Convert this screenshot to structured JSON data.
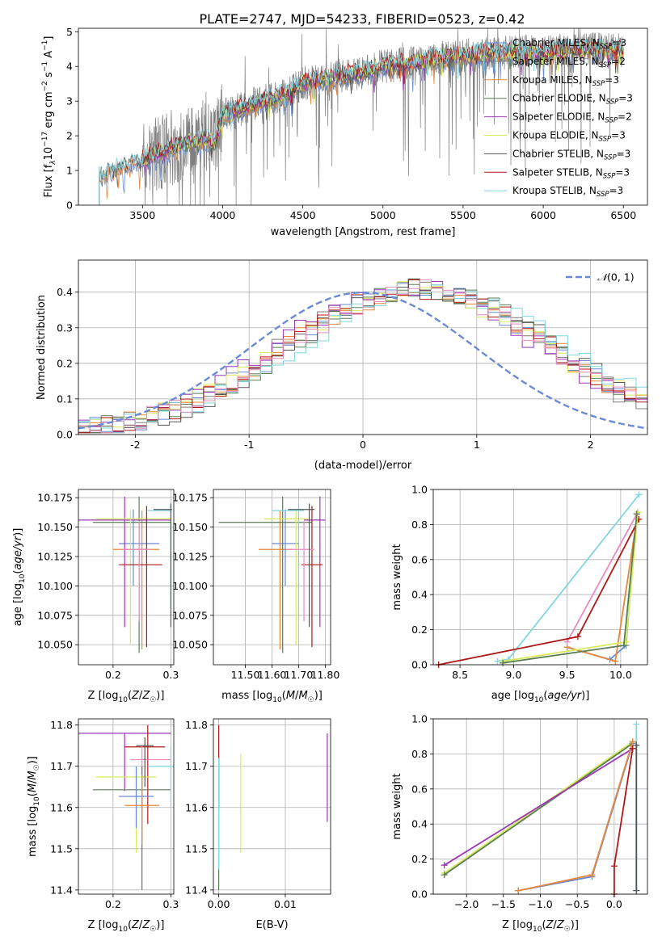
{
  "title": "PLATE=2747, MJD=54233, FIBERID=0523, z=0.42",
  "colors": {
    "chabrier_miles": "#6a8bd4",
    "salpeter_miles": "#7d7d7d",
    "kroupa_miles": "#e8883a",
    "chabrier_elodie": "#5a7d55",
    "salpeter_elodie": "#9b36b8",
    "kroupa_elodie": "#d8ea5a",
    "chabrier_stelib": "#555555",
    "salpeter_stelib": "#b01818",
    "kroupa_stelib": "#7fd6e0",
    "pink": "#e88bbf",
    "normal": "#6a8bd4"
  },
  "chart_data": [
    {
      "id": "spectrum",
      "type": "line",
      "xlabel": "wavelength [Angstrom, rest frame]",
      "ylabel": "Flux [f",
      "ylabel_unit": "10",
      "xlim": [
        3100,
        6650
      ],
      "ylim": [
        0,
        5.1
      ],
      "xticks": [
        3500,
        4000,
        4500,
        5000,
        5500,
        6000,
        6500
      ],
      "yticks": [
        0,
        1,
        2,
        3,
        4,
        5
      ],
      "legend": [
        "Chabrier MILES, N",
        "Salpeter MILES, N",
        "Kroupa MILES, N",
        "Chabrier ELODIE, N",
        "Salpeter ELODIE, N",
        "Kroupa ELODIE, N",
        "Chabrier STELIB, N",
        "Salpeter STELIB, N",
        "Kroupa STELIB, N"
      ],
      "legend_sub": "SSP",
      "legend_n": [
        "=3",
        "=2",
        "=3",
        "=3",
        "=2",
        "=3",
        "=3",
        "=3",
        "=3"
      ],
      "continuum": {
        "x": [
          3230,
          3300,
          3400,
          3500,
          3600,
          3700,
          3800,
          3900,
          3950,
          4000,
          4100,
          4200,
          4300,
          4400,
          4500,
          4600,
          4700,
          4800,
          4900,
          5000,
          5100,
          5200,
          5300,
          5400,
          5500,
          5600,
          5700,
          5800,
          5900,
          6000,
          6100,
          6200,
          6300,
          6400,
          6500
        ],
        "y": [
          0.8,
          1.0,
          1.15,
          1.3,
          1.5,
          1.7,
          1.85,
          1.9,
          1.75,
          2.6,
          2.75,
          2.95,
          3.05,
          3.2,
          3.5,
          3.6,
          3.7,
          3.78,
          3.85,
          4.0,
          4.05,
          4.1,
          4.2,
          4.25,
          4.3,
          4.35,
          4.4,
          4.4,
          4.42,
          4.4,
          4.45,
          4.45,
          4.5,
          4.48,
          4.45
        ]
      }
    },
    {
      "id": "residuals",
      "type": "histogram",
      "xlabel": "(data-model)/error",
      "ylabel": "Normed distribution",
      "xlim": [
        -2.5,
        2.5
      ],
      "ylim": [
        0,
        0.49
      ],
      "xticks": [
        -2,
        -1,
        0,
        1,
        2
      ],
      "yticks": [
        0.0,
        0.1,
        0.2,
        0.3,
        0.4
      ],
      "legend": "N(0, 1)",
      "bin_width": 0.1,
      "bin_start": -2.5,
      "base_shape": [
        0.02,
        0.025,
        0.03,
        0.03,
        0.035,
        0.04,
        0.045,
        0.05,
        0.06,
        0.065,
        0.075,
        0.08,
        0.09,
        0.1,
        0.11,
        0.12,
        0.13,
        0.14,
        0.155,
        0.17,
        0.185,
        0.2,
        0.22,
        0.24,
        0.26,
        0.28,
        0.3,
        0.32,
        0.34,
        0.355,
        0.37,
        0.38,
        0.39,
        0.395,
        0.4,
        0.405,
        0.41,
        0.41,
        0.41,
        0.405,
        0.4,
        0.39,
        0.38,
        0.37,
        0.355,
        0.34,
        0.32,
        0.3,
        0.28,
        0.26
      ]
    },
    {
      "id": "age_vs_z",
      "type": "errorbar",
      "xlabel": "Z [log",
      "ylabel": "age  [log",
      "xlim": [
        0.14,
        0.305
      ],
      "ylim": [
        10.033,
        10.182
      ],
      "xticks": [
        0.2,
        0.3
      ],
      "yticks": [
        10.05,
        10.075,
        10.1,
        10.125,
        10.15,
        10.175
      ],
      "points": [
        {
          "c": "kroupa_miles",
          "x": 0.25,
          "y": 10.131,
          "xe": [
            0.2,
            0.28
          ],
          "ye": [
            10.046,
            10.164
          ]
        },
        {
          "c": "chabrier_miles",
          "x": 0.235,
          "y": 10.136,
          "xe": [
            0.21,
            0.28
          ],
          "ye": [
            10.1,
            10.165
          ]
        },
        {
          "c": "salpeter_elodie",
          "x": 0.22,
          "y": 10.156,
          "xe": [
            0.14,
            0.3
          ],
          "ye": [
            10.065,
            10.176
          ]
        },
        {
          "c": "chabrier_elodie",
          "x": 0.245,
          "y": 10.154,
          "xe": [
            0.165,
            0.3
          ],
          "ye": [
            10.043,
            10.176
          ]
        },
        {
          "c": "kroupa_elodie",
          "x": 0.23,
          "y": 10.157,
          "xe": [
            0.17,
            0.3
          ],
          "ye": [
            10.05,
            10.164
          ]
        },
        {
          "c": "salpeter_stelib",
          "x": 0.258,
          "y": 10.118,
          "xe": [
            0.21,
            0.285
          ],
          "ye": [
            10.048,
            10.168
          ]
        },
        {
          "c": "kroupa_stelib",
          "x": 0.3,
          "y": 10.164,
          "xe": [
            0.26,
            0.3
          ],
          "ye": [
            10.08,
            10.17
          ]
        },
        {
          "c": "pink",
          "x": 0.245,
          "y": 10.131,
          "xe": [
            0.215,
            0.265
          ],
          "ye": [
            10.07,
            10.155
          ]
        },
        {
          "c": "chabrier_stelib",
          "x": 0.3,
          "y": 10.165,
          "xe": [
            0.27,
            0.302
          ],
          "ye": [
            10.065,
            10.17
          ]
        }
      ]
    },
    {
      "id": "age_vs_mass",
      "type": "errorbar",
      "xlabel": "mass [log",
      "xlim": [
        11.38,
        11.82
      ],
      "ylim": [
        10.033,
        10.182
      ],
      "xticks": [
        11.5,
        11.6,
        11.7,
        11.8
      ],
      "yticks": [
        10.05,
        10.075,
        10.1,
        10.125,
        10.15,
        10.175
      ],
      "points": [
        {
          "c": "kroupa_miles",
          "x": 11.63,
          "y": 10.131,
          "xe": [
            11.55,
            11.68
          ],
          "ye": [
            10.046,
            10.164
          ]
        },
        {
          "c": "chabrier_miles",
          "x": 11.65,
          "y": 10.136,
          "xe": [
            11.6,
            11.7
          ],
          "ye": [
            10.1,
            10.165
          ]
        },
        {
          "c": "salpeter_elodie",
          "x": 11.78,
          "y": 10.156,
          "xe": [
            11.72,
            11.8
          ],
          "ye": [
            10.065,
            10.176
          ]
        },
        {
          "c": "chabrier_elodie",
          "x": 11.64,
          "y": 10.154,
          "xe": [
            11.4,
            11.75
          ],
          "ye": [
            10.043,
            10.176
          ]
        },
        {
          "c": "kroupa_elodie",
          "x": 11.69,
          "y": 10.157,
          "xe": [
            11.57,
            11.74
          ],
          "ye": [
            10.05,
            10.164
          ]
        },
        {
          "c": "salpeter_stelib",
          "x": 11.75,
          "y": 10.118,
          "xe": [
            11.71,
            11.79
          ],
          "ye": [
            10.048,
            10.168
          ]
        },
        {
          "c": "kroupa_stelib",
          "x": 11.7,
          "y": 10.164,
          "xe": [
            11.6,
            11.72
          ],
          "ye": [
            10.08,
            10.17
          ]
        },
        {
          "c": "pink",
          "x": 11.72,
          "y": 10.131,
          "xe": [
            11.66,
            11.76
          ],
          "ye": [
            10.07,
            10.155
          ]
        },
        {
          "c": "chabrier_stelib",
          "x": 11.74,
          "y": 10.165,
          "xe": [
            11.66,
            11.76
          ],
          "ye": [
            10.065,
            10.17
          ]
        }
      ]
    },
    {
      "id": "weight_vs_age",
      "type": "line",
      "xlabel": "age  [log",
      "ylabel": "mass weight",
      "xlim": [
        8.25,
        10.25
      ],
      "ylim": [
        0,
        1
      ],
      "xticks": [
        8.5,
        9.0,
        9.5,
        10.0
      ],
      "yticks": [
        0.0,
        0.2,
        0.4,
        0.6,
        0.8,
        1.0
      ],
      "series": [
        {
          "c": "kroupa_stelib",
          "x": [
            8.85,
            8.95,
            10.17
          ],
          "y": [
            0.02,
            0.03,
            0.97
          ]
        },
        {
          "c": "chabrier_miles",
          "x": [
            9.5,
            9.9,
            10.05,
            10.15
          ],
          "y": [
            0.1,
            0.03,
            0.11,
            0.86
          ]
        },
        {
          "c": "kroupa_miles",
          "x": [
            9.5,
            9.95,
            10.16
          ],
          "y": [
            0.1,
            0.02,
            0.87
          ]
        },
        {
          "c": "pink",
          "x": [
            9.5,
            10.15
          ],
          "y": [
            0.13,
            0.86
          ]
        },
        {
          "c": "salpeter_stelib",
          "x": [
            8.3,
            9.6,
            10.17
          ],
          "y": [
            0.0,
            0.16,
            0.83
          ]
        },
        {
          "c": "kroupa_elodie",
          "x": [
            8.9,
            10.05,
            10.16
          ],
          "y": [
            0.02,
            0.13,
            0.87
          ]
        },
        {
          "c": "chabrier_elodie",
          "x": [
            8.9,
            10.03,
            10.15
          ],
          "y": [
            0.01,
            0.11,
            0.86
          ]
        }
      ]
    },
    {
      "id": "mass_vs_z",
      "type": "errorbar",
      "xlabel": "Z [log",
      "ylabel": "mass [log",
      "xlim": [
        0.14,
        0.305
      ],
      "ylim": [
        11.39,
        11.815
      ],
      "xticks": [
        0.2,
        0.3
      ],
      "yticks": [
        11.4,
        11.5,
        11.6,
        11.7,
        11.8
      ],
      "points": [
        {
          "c": "salpeter_elodie",
          "x": 0.22,
          "y": 11.78,
          "xe": [
            0.14,
            0.3
          ],
          "ye": [
            11.64,
            11.78
          ]
        },
        {
          "c": "salpeter_stelib",
          "x": 0.26,
          "y": 11.747,
          "xe": [
            0.22,
            0.29
          ],
          "ye": [
            11.56,
            11.8
          ]
        },
        {
          "c": "pink",
          "x": 0.25,
          "y": 11.716,
          "xe": [
            0.23,
            0.3
          ],
          "ye": [
            11.52,
            11.75
          ]
        },
        {
          "c": "kroupa_elodie",
          "x": 0.24,
          "y": 11.674,
          "xe": [
            0.17,
            0.275
          ],
          "ye": [
            11.49,
            11.7
          ]
        },
        {
          "c": "chabrier_elodie",
          "x": 0.25,
          "y": 11.643,
          "xe": [
            0.165,
            0.3
          ],
          "ye": [
            11.4,
            11.7
          ]
        },
        {
          "c": "chabrier_miles",
          "x": 0.24,
          "y": 11.627,
          "xe": [
            0.21,
            0.27
          ],
          "ye": [
            11.55,
            11.7
          ]
        },
        {
          "c": "kroupa_miles",
          "x": 0.25,
          "y": 11.605,
          "xe": [
            0.22,
            0.28
          ],
          "ye": [
            11.51,
            11.68
          ]
        },
        {
          "c": "kroupa_stelib",
          "x": 0.3,
          "y": 11.7,
          "xe": [
            0.26,
            0.305
          ],
          "ye": [
            11.6,
            11.75
          ]
        },
        {
          "c": "chabrier_stelib",
          "x": 0.255,
          "y": 11.75,
          "xe": [
            0.24,
            0.27
          ],
          "ye": [
            11.65,
            11.77
          ]
        }
      ]
    },
    {
      "id": "mass_vs_ebv",
      "type": "errorbar",
      "xlabel": "E(B-V)",
      "xlim": [
        -0.0008,
        0.0168
      ],
      "ylim": [
        11.39,
        11.815
      ],
      "xticks": [
        0.0,
        0.01
      ],
      "yticks": [
        11.4,
        11.5,
        11.6,
        11.7,
        11.8
      ],
      "points": [
        {
          "c": "salpeter_stelib",
          "x": 0.0,
          "y": 11.7,
          "xe": [
            0.0,
            0.0
          ],
          "ye": [
            11.6,
            11.8
          ]
        },
        {
          "c": "chabrier_elodie",
          "x": 0.0,
          "y": 11.6,
          "xe": [
            0.0,
            0.0
          ],
          "ye": [
            11.4,
            11.72
          ]
        },
        {
          "c": "kroupa_stelib",
          "x": 0.0,
          "y": 11.65,
          "xe": [
            0.0,
            0.0
          ],
          "ye": [
            11.45,
            11.72
          ]
        },
        {
          "c": "kroupa_elodie",
          "x": 0.0033,
          "y": 11.6,
          "xe": [
            0.0033,
            0.0033
          ],
          "ye": [
            11.49,
            11.73
          ]
        },
        {
          "c": "salpeter_elodie",
          "x": 0.0163,
          "y": 11.67,
          "xe": [
            0.0163,
            0.0163
          ],
          "ye": [
            11.565,
            11.78
          ]
        }
      ]
    },
    {
      "id": "weight_vs_z",
      "type": "line",
      "xlabel": "Z [log",
      "ylabel": "mass weight",
      "xlim": [
        -2.45,
        0.45
      ],
      "ylim": [
        0,
        1
      ],
      "xticks": [
        -2.0,
        -1.5,
        -1.0,
        -0.5,
        0.0
      ],
      "yticks": [
        0.0,
        0.2,
        0.4,
        0.6,
        0.8,
        1.0
      ],
      "series": [
        {
          "c": "kroupa_elodie",
          "x": [
            -2.3,
            0.25
          ],
          "y": [
            0.12,
            0.87
          ]
        },
        {
          "c": "chabrier_elodie",
          "x": [
            -2.3,
            0.25
          ],
          "y": [
            0.11,
            0.86
          ]
        },
        {
          "c": "salpeter_elodie",
          "x": [
            -2.3,
            0.25
          ],
          "y": [
            0.165,
            0.83
          ]
        },
        {
          "c": "chabrier_miles",
          "x": [
            -1.3,
            -0.3,
            0.25
          ],
          "y": [
            0.02,
            0.1,
            0.86
          ]
        },
        {
          "c": "kroupa_miles",
          "x": [
            -1.3,
            -0.3,
            0.25
          ],
          "y": [
            0.02,
            0.11,
            0.87
          ]
        },
        {
          "c": "salpeter_stelib",
          "x": [
            0.0,
            0.0,
            0.25
          ],
          "y": [
            0.0,
            0.16,
            0.83
          ]
        },
        {
          "c": "kroupa_stelib",
          "x": [
            0.3,
            0.3
          ],
          "y": [
            0.02,
            0.97
          ]
        },
        {
          "c": "chabrier_stelib",
          "x": [
            0.3,
            0.3
          ],
          "y": [
            0.02,
            0.85
          ]
        }
      ]
    }
  ]
}
